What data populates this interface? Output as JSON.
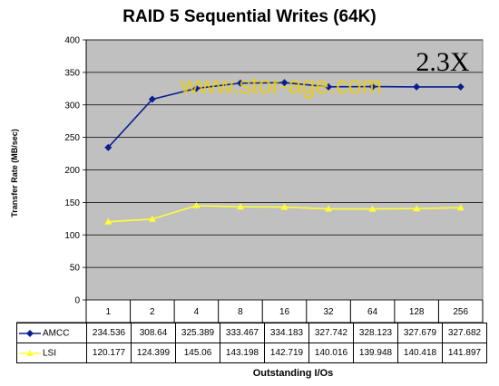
{
  "chart_data": {
    "type": "line",
    "title": "RAID 5 Sequential Writes (64K)",
    "xlabel": "Outstanding I/Os",
    "ylabel": "Transfer Rate (MB/sec)",
    "categories": [
      "1",
      "2",
      "4",
      "8",
      "16",
      "32",
      "64",
      "128",
      "256"
    ],
    "ylim": [
      0,
      400
    ],
    "yticks": [
      "0",
      "50",
      "100",
      "150",
      "200",
      "250",
      "300",
      "350",
      "400"
    ],
    "grid": true,
    "series": [
      {
        "name": "AMCC",
        "color": "#0a1f8f",
        "marker": "diamond",
        "values": [
          234.536,
          308.64,
          325.389,
          333.467,
          334.183,
          327.742,
          328.123,
          327.679,
          327.682
        ],
        "labels": [
          "234.536",
          "308.64",
          "325.389",
          "333.467",
          "334.183",
          "327.742",
          "328.123",
          "327.679",
          "327.682"
        ]
      },
      {
        "name": "LSI",
        "color": "#ffff33",
        "marker": "triangle",
        "values": [
          120.177,
          124.399,
          145.06,
          143.198,
          142.719,
          140.016,
          139.948,
          140.418,
          141.897
        ],
        "labels": [
          "120.177",
          "124.399",
          "145.06",
          "143.198",
          "142.719",
          "140.016",
          "139.948",
          "140.418",
          "141.897"
        ]
      }
    ],
    "annotation": "2.3X",
    "watermark": "www.stor-age.com",
    "watermark_color": "#f0d000",
    "plot_background": "#c0c0c0"
  }
}
